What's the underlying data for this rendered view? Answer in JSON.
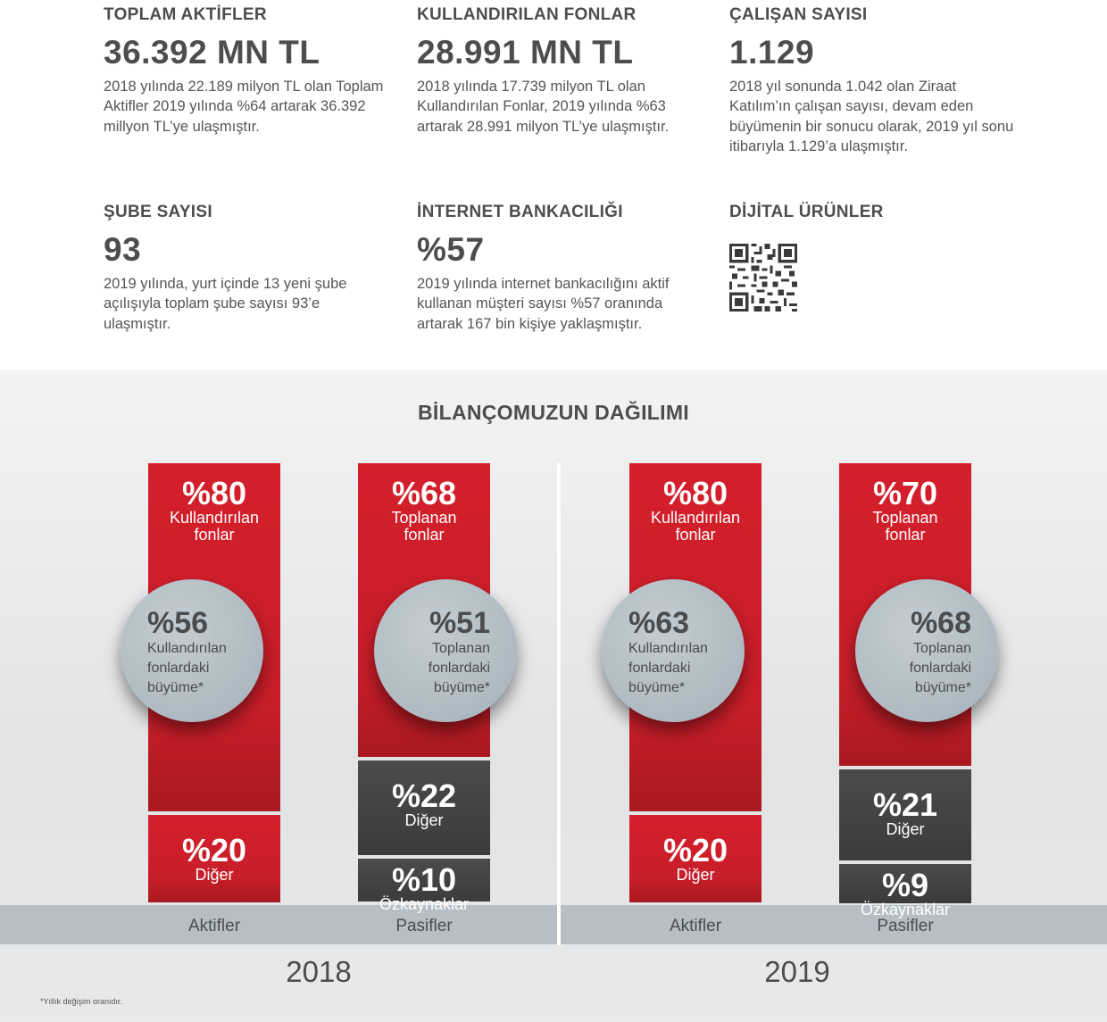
{
  "stats": [
    {
      "title": "TOPLAM AKTİFLER",
      "value": "36.392 MN TL",
      "text": "2018 yılında 22.189 milyon TL olan Toplam Aktifler 2019 yılında %64 artarak 36.392 millyon TL’ye ulaşmıştır."
    },
    {
      "title": "KULLANDIRILAN FONLAR",
      "value": "28.991 MN TL",
      "text": "2018 yılında 17.739 milyon TL olan Kullandırılan Fonlar, 2019 yılında %63 artarak 28.991 milyon TL’ye ulaşmıştır."
    },
    {
      "title": "ÇALIŞAN SAYISI",
      "value": "1.129",
      "text": "2018 yıl sonunda 1.042 olan Ziraat Katılım’ın çalışan sayısı, devam eden büyümenin bir sonucu olarak, 2019 yıl sonu itibarıyla 1.129’a ulaşmıştır."
    },
    {
      "title": "ŞUBE SAYISI",
      "value": "93",
      "text": "2019 yılında, yurt içinde 13 yeni şube açılışıyla toplam şube sayısı 93’e ulaşmıştır."
    },
    {
      "title": "İNTERNET BANKACILIĞI",
      "value": "%57",
      "text": "2019 yılında internet bankacılığını aktif kullanan müşteri sayısı %57 oranında artarak 167 bin kişiye yaklaşmıştır."
    },
    {
      "title": "DİJİTAL ÜRÜNLER",
      "value": "",
      "text": ""
    }
  ],
  "qr_icon": "qr-code-icon",
  "colors": {
    "red": "#d41f2b",
    "dark": "#3e3f41",
    "circle": "#b1bcc3",
    "base": "#b5bfc5"
  },
  "chart_data": {
    "type": "bar",
    "title": "BİLANÇOMUZUN DAĞILIMI",
    "stacked": true,
    "years": [
      "2018",
      "2019"
    ],
    "categories": [
      "Aktifler",
      "Pasifler"
    ],
    "bars": [
      {
        "year": "2018",
        "category": "Aktifler",
        "segments": [
          {
            "pct": "%80",
            "value": 80,
            "label": "Kullandırılan\nfonlar",
            "color": "red"
          },
          {
            "pct": "%20",
            "value": 20,
            "label": "Diğer",
            "color": "red"
          }
        ],
        "growth": {
          "pct": "%56",
          "label": "Kullandırılan\nfonlardaki\nbüyüme*"
        }
      },
      {
        "year": "2018",
        "category": "Pasifler",
        "segments": [
          {
            "pct": "%68",
            "value": 68,
            "label": "Toplanan\nfonlar",
            "color": "red"
          },
          {
            "pct": "%22",
            "value": 22,
            "label": "Diğer",
            "color": "dark"
          },
          {
            "pct": "%10",
            "value": 10,
            "label": "Özkaynaklar",
            "color": "dark"
          }
        ],
        "growth": {
          "pct": "%51",
          "label": "Toplanan\nfonlardaki\nbüyüme*"
        }
      },
      {
        "year": "2019",
        "category": "Aktifler",
        "segments": [
          {
            "pct": "%80",
            "value": 80,
            "label": "Kullandırılan\nfonlar",
            "color": "red"
          },
          {
            "pct": "%20",
            "value": 20,
            "label": "Diğer",
            "color": "red"
          }
        ],
        "growth": {
          "pct": "%63",
          "label": "Kullandırılan\nfonlardaki\nbüyüme*"
        }
      },
      {
        "year": "2019",
        "category": "Pasifler",
        "segments": [
          {
            "pct": "%70",
            "value": 70,
            "label": "Toplanan\nfonlar",
            "color": "red"
          },
          {
            "pct": "%21",
            "value": 21,
            "label": "Diğer",
            "color": "dark"
          },
          {
            "pct": "%9",
            "value": 9,
            "label": "Özkaynaklar",
            "color": "dark"
          }
        ],
        "growth": {
          "pct": "%68",
          "label": "Toplanan\nfonlardaki\nbüyüme*"
        }
      }
    ],
    "footnote": "*Yıllık değişim oranıdır."
  }
}
